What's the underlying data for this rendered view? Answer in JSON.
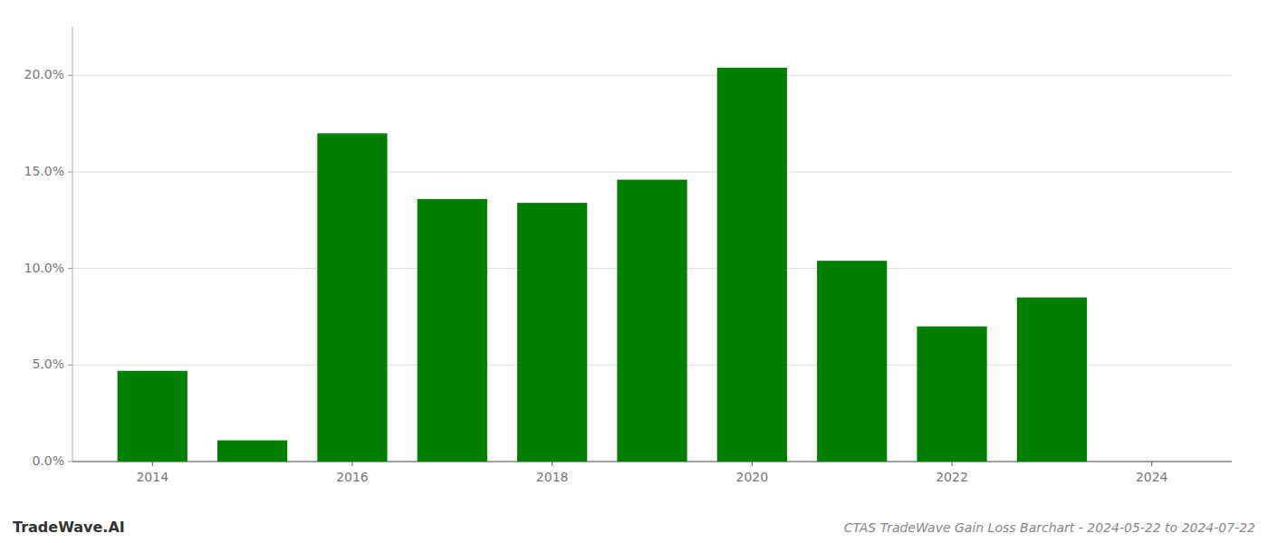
{
  "chart_data": {
    "type": "bar",
    "title": "CTAS TradeWave Gain Loss Barchart - 2024-05-22 to 2024-07-22",
    "annotations": [
      "TradeWave.AI"
    ],
    "x": [
      2014,
      2015,
      2016,
      2017,
      2018,
      2019,
      2020,
      2021,
      2022,
      2023
    ],
    "values": [
      0.047,
      0.011,
      0.17,
      0.136,
      0.134,
      0.146,
      0.204,
      0.104,
      0.07,
      0.085
    ],
    "color": "#008000",
    "xlim": [
      2013.2,
      2024.8
    ],
    "xticks": [
      2014,
      2016,
      2018,
      2020,
      2022,
      2024
    ],
    "ylim": [
      0,
      0.225
    ],
    "yticks": [
      {
        "value": 0.0,
        "label": "0.0%"
      },
      {
        "value": 0.05,
        "label": "5.0%"
      },
      {
        "value": 0.1,
        "label": "10.0%"
      },
      {
        "value": 0.15,
        "label": "15.0%"
      },
      {
        "value": 0.2,
        "label": "20.0%"
      }
    ],
    "grid": true
  }
}
